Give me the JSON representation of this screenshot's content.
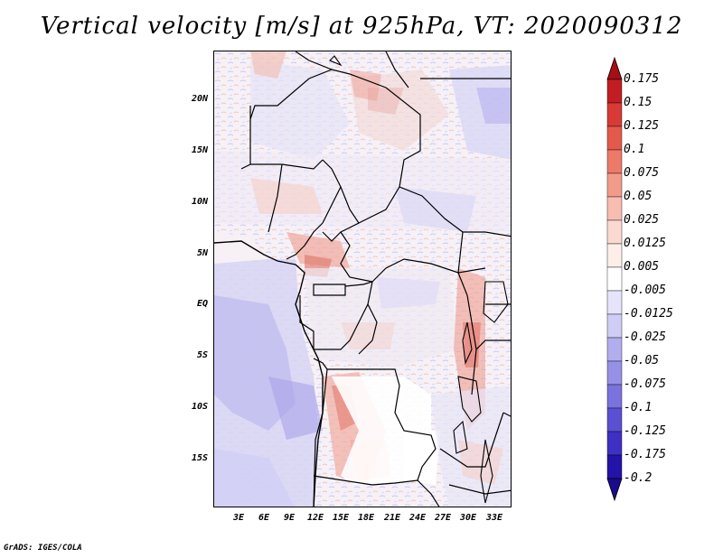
{
  "title": "Vertical velocity [m/s] at 925hPa, VT: 2020090312",
  "credit": "GrADS: IGES/COLA",
  "lat_labels": [
    "20N",
    "15N",
    "10N",
    "5N",
    "EQ",
    "5S",
    "10S",
    "15S"
  ],
  "lat_values": [
    20,
    15,
    10,
    5,
    0,
    -5,
    -10,
    -15
  ],
  "lon_labels": [
    "3E",
    "6E",
    "9E",
    "12E",
    "15E",
    "18E",
    "21E",
    "24E",
    "27E",
    "30E",
    "33E"
  ],
  "lon_values": [
    3,
    6,
    9,
    12,
    15,
    18,
    21,
    24,
    27,
    30,
    33
  ],
  "colorbar": {
    "labels": [
      "0.175",
      "0.15",
      "0.125",
      "0.1",
      "0.075",
      "0.05",
      "0.025",
      "0.0125",
      "0.005",
      "-0.005",
      "-0.0125",
      "-0.025",
      "-0.05",
      "-0.075",
      "-0.1",
      "-0.125",
      "-0.175",
      "-0.2"
    ],
    "colors": [
      "#a50f15",
      "#c21d24",
      "#d83a35",
      "#e35a4c",
      "#ec7a69",
      "#f39b8b",
      "#f7bdb0",
      "#fbd9d1",
      "#fdeeea",
      "#ffffff",
      "#e5e4fa",
      "#cfcdf5",
      "#b2aeee",
      "#9690e6",
      "#7a72dd",
      "#5b50d1",
      "#3e30c2",
      "#2313a8",
      "#1a0b8c"
    ]
  }
}
